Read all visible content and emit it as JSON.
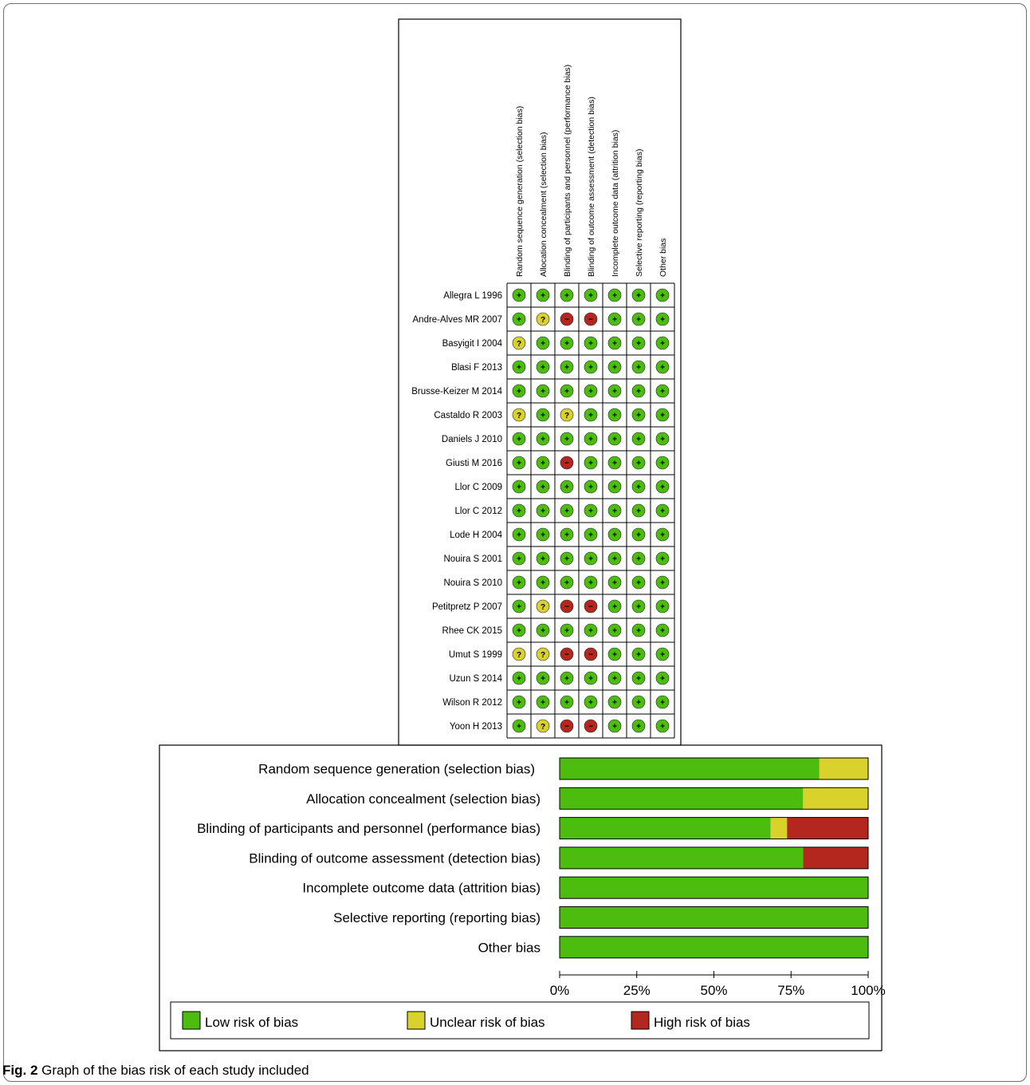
{
  "summary": {
    "columns": [
      "Random sequence generation (selection bias)",
      "Allocation concealment (selection bias)",
      "Blinding of participants and personnel (performance bias)",
      "Blinding of outcome assessment (detection bias)",
      "Incomplete outcome data (attrition bias)",
      "Selective reporting (reporting bias)",
      "Other bias"
    ],
    "studies": [
      {
        "name": "Allegra L 1996",
        "ratings": [
          "+",
          "+",
          "+",
          "+",
          "+",
          "+",
          "+"
        ]
      },
      {
        "name": "Andre-Alves MR 2007",
        "ratings": [
          "+",
          "?",
          "-",
          "-",
          "+",
          "+",
          "+"
        ]
      },
      {
        "name": "Basyigit I 2004",
        "ratings": [
          "?",
          "+",
          "+",
          "+",
          "+",
          "+",
          "+"
        ]
      },
      {
        "name": "Blasi F 2013",
        "ratings": [
          "+",
          "+",
          "+",
          "+",
          "+",
          "+",
          "+"
        ]
      },
      {
        "name": "Brusse-Keizer M 2014",
        "ratings": [
          "+",
          "+",
          "+",
          "+",
          "+",
          "+",
          "+"
        ]
      },
      {
        "name": "Castaldo R 2003",
        "ratings": [
          "?",
          "+",
          "?",
          "+",
          "+",
          "+",
          "+"
        ]
      },
      {
        "name": "Daniels J 2010",
        "ratings": [
          "+",
          "+",
          "+",
          "+",
          "+",
          "+",
          "+"
        ]
      },
      {
        "name": "Giusti M 2016",
        "ratings": [
          "+",
          "+",
          "-",
          "+",
          "+",
          "+",
          "+"
        ]
      },
      {
        "name": "Llor C 2009",
        "ratings": [
          "+",
          "+",
          "+",
          "+",
          "+",
          "+",
          "+"
        ]
      },
      {
        "name": "Llor C 2012",
        "ratings": [
          "+",
          "+",
          "+",
          "+",
          "+",
          "+",
          "+"
        ]
      },
      {
        "name": "Lode H 2004",
        "ratings": [
          "+",
          "+",
          "+",
          "+",
          "+",
          "+",
          "+"
        ]
      },
      {
        "name": "Nouira S 2001",
        "ratings": [
          "+",
          "+",
          "+",
          "+",
          "+",
          "+",
          "+"
        ]
      },
      {
        "name": "Nouira S 2010",
        "ratings": [
          "+",
          "+",
          "+",
          "+",
          "+",
          "+",
          "+"
        ]
      },
      {
        "name": "Petitpretz P 2007",
        "ratings": [
          "+",
          "?",
          "-",
          "-",
          "+",
          "+",
          "+"
        ]
      },
      {
        "name": "Rhee CK 2015",
        "ratings": [
          "+",
          "+",
          "+",
          "+",
          "+",
          "+",
          "+"
        ]
      },
      {
        "name": "Umut S 1999",
        "ratings": [
          "?",
          "?",
          "-",
          "-",
          "+",
          "+",
          "+"
        ]
      },
      {
        "name": "Uzun S 2014",
        "ratings": [
          "+",
          "+",
          "+",
          "+",
          "+",
          "+",
          "+"
        ]
      },
      {
        "name": "Wilson R 2012",
        "ratings": [
          "+",
          "+",
          "+",
          "+",
          "+",
          "+",
          "+"
        ]
      },
      {
        "name": "Yoon H 2013",
        "ratings": [
          "+",
          "?",
          "-",
          "-",
          "+",
          "+",
          "+"
        ]
      }
    ],
    "symbols": {
      "low": "+",
      "unclear": "?",
      "high": "−"
    }
  },
  "chart_data": {
    "type": "bar",
    "orientation": "horizontal",
    "stacked": true,
    "categories": [
      "Random sequence generation (selection bias)",
      "Allocation concealment (selection bias)",
      "Blinding of participants and personnel (performance bias)",
      "Blinding of outcome assessment (detection bias)",
      "Incomplete outcome data (attrition bias)",
      "Selective reporting (reporting bias)",
      "Other bias"
    ],
    "series": [
      {
        "name": "Low risk of bias",
        "values": [
          84.2,
          78.9,
          68.4,
          78.9,
          100,
          100,
          100
        ]
      },
      {
        "name": "Unclear risk of bias",
        "values": [
          15.8,
          21.1,
          5.3,
          0,
          0,
          0,
          0
        ]
      },
      {
        "name": "High risk of bias",
        "values": [
          0,
          0,
          26.3,
          21.1,
          0,
          0,
          0
        ]
      }
    ],
    "xlim": [
      0,
      100
    ],
    "xticks": [
      "0%",
      "25%",
      "50%",
      "75%",
      "100%"
    ],
    "legend_position": "bottom",
    "colors": {
      "low": "#4cbd0f",
      "unclear": "#d9d12c",
      "high": "#b3271f"
    }
  },
  "caption": {
    "label": "Fig. 2",
    "text": "Graph of the bias risk of each study included"
  }
}
